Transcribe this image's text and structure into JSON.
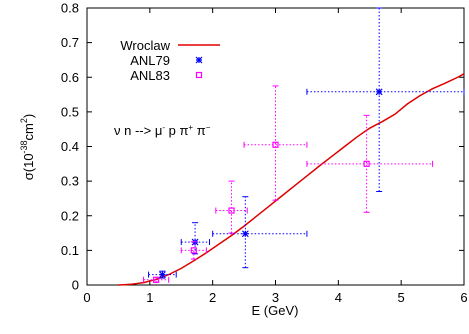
{
  "chart_data": {
    "type": "scatter",
    "title": "",
    "xlabel": "E (GeV)",
    "ylabel_parts": {
      "main": "σ(10",
      "exp": "-38",
      "unit": "cm",
      "exp2": "2",
      "close": ")"
    },
    "xlim": [
      0,
      6
    ],
    "ylim": [
      0,
      0.8
    ],
    "x_ticks": [
      0,
      1,
      2,
      3,
      4,
      5,
      6
    ],
    "y_ticks": [
      0,
      0.1,
      0.2,
      0.3,
      0.4,
      0.5,
      0.6,
      0.7,
      0.8
    ],
    "x_tick_labels": [
      "0",
      "1",
      "2",
      "3",
      "4",
      "5",
      "6"
    ],
    "y_tick_labels": [
      "0",
      "0.1",
      "0.2",
      "0.3",
      "0.4",
      "0.5",
      "0.6",
      "0.7",
      "0.8"
    ],
    "grid": false,
    "legend_position": "top-left",
    "annotation_parts": {
      "nu": "ν n --> μ",
      "mu_sup": "-",
      "p_pi": " p π",
      "pip_sup": "+",
      "pi": " π",
      "pim_sup": "−"
    },
    "series": [
      {
        "name": "Wroclaw",
        "kind": "line",
        "color": "#e00000",
        "x": [
          0.5,
          0.7,
          0.9,
          1.1,
          1.3,
          1.5,
          1.7,
          1.9,
          2.1,
          2.3,
          2.5,
          2.7,
          2.9,
          3.1,
          3.3,
          3.5,
          3.7,
          3.9,
          4.1,
          4.3,
          4.5,
          4.7,
          4.9,
          5.1,
          5.3,
          5.5,
          5.7,
          5.9,
          6.0
        ],
        "y": [
          0.0,
          0.002,
          0.007,
          0.016,
          0.03,
          0.048,
          0.07,
          0.093,
          0.118,
          0.143,
          0.17,
          0.199,
          0.228,
          0.257,
          0.286,
          0.315,
          0.344,
          0.372,
          0.4,
          0.428,
          0.453,
          0.472,
          0.493,
          0.523,
          0.547,
          0.567,
          0.583,
          0.6,
          0.61
        ]
      },
      {
        "name": "ANL79",
        "kind": "points",
        "color": "#0000ff",
        "marker": "star",
        "points": [
          {
            "x": 1.2,
            "y": 0.03,
            "xerr": [
              0.98,
              1.42
            ],
            "yerr": [
              0.02,
              0.04
            ]
          },
          {
            "x": 1.72,
            "y": 0.124,
            "xerr": [
              1.5,
              1.95
            ],
            "yerr": [
              0.09,
              0.18
            ]
          },
          {
            "x": 2.52,
            "y": 0.148,
            "xerr": [
              2.0,
              3.5
            ],
            "yerr": [
              0.05,
              0.255
            ]
          },
          {
            "x": 4.65,
            "y": 0.558,
            "xerr": [
              3.5,
              6.0
            ],
            "yerr": [
              0.27,
              0.8
            ]
          }
        ]
      },
      {
        "name": "ANL83",
        "kind": "points",
        "color": "#ff00ff",
        "marker": "square",
        "points": [
          {
            "x": 1.1,
            "y": 0.015,
            "xerr": [
              0.9,
              1.3
            ],
            "yerr": [
              0.008,
              0.022
            ]
          },
          {
            "x": 1.7,
            "y": 0.1,
            "xerr": [
              1.5,
              1.9
            ],
            "yerr": [
              0.075,
              0.125
            ]
          },
          {
            "x": 2.3,
            "y": 0.215,
            "xerr": [
              2.05,
              2.55
            ],
            "yerr": [
              0.15,
              0.3
            ]
          },
          {
            "x": 3.0,
            "y": 0.405,
            "xerr": [
              2.5,
              3.5
            ],
            "yerr": [
              0.245,
              0.575
            ]
          },
          {
            "x": 4.45,
            "y": 0.35,
            "xerr": [
              3.5,
              5.5
            ],
            "yerr": [
              0.21,
              0.49
            ]
          }
        ]
      }
    ]
  }
}
